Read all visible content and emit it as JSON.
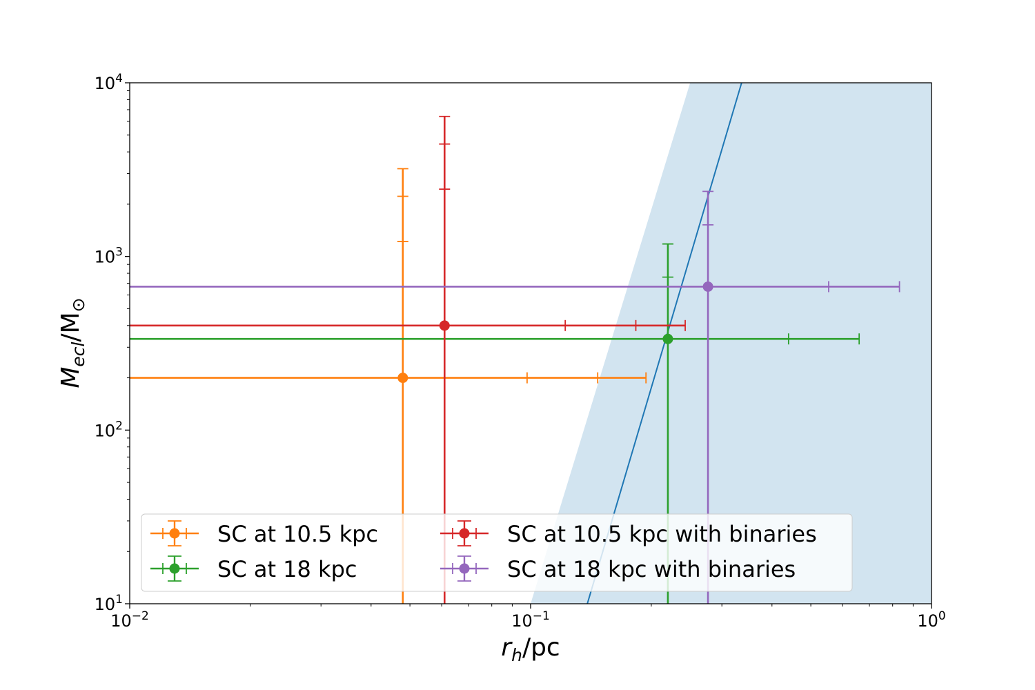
{
  "chart_data": {
    "type": "scatter",
    "xscale": "log",
    "yscale": "log",
    "xlim": [
      0.01,
      1
    ],
    "ylim": [
      10,
      10000
    ],
    "xlabel": {
      "italic": "r",
      "sub": "h",
      "rest": "/pc"
    },
    "ylabel": {
      "italic": "M",
      "sub": "ecl",
      "rest": "/M",
      "symbol": "⊙"
    },
    "x_ticks": [
      {
        "value": 0.01,
        "base": "10",
        "exp": "−2"
      },
      {
        "value": 0.1,
        "base": "10",
        "exp": "−1"
      },
      {
        "value": 1,
        "base": "10",
        "exp": "0"
      }
    ],
    "y_ticks": [
      {
        "value": 10,
        "base": "10",
        "exp": "1"
      },
      {
        "value": 100,
        "base": "10",
        "exp": "2"
      },
      {
        "value": 1000,
        "base": "10",
        "exp": "3"
      },
      {
        "value": 10000,
        "base": "10",
        "exp": "4"
      }
    ],
    "grid": false,
    "legend_placement": "lower-left",
    "legend_columns": 2,
    "series": [
      {
        "name": "SC at 10.5 kpc",
        "color": "#ff7f0e",
        "x": 0.048,
        "y": 200,
        "x_caps": [
          0.098,
          0.147
        ],
        "x_end": 0.194,
        "x_lower_end": 0.01,
        "y_caps": [
          1220,
          2220
        ],
        "y_end": 3200,
        "y_lower_end": 10
      },
      {
        "name": "SC at 18 kpc",
        "color": "#2ca02c",
        "x": 0.22,
        "y": 335,
        "x_caps": [
          0.44
        ],
        "x_end": 0.66,
        "x_lower_end": 0.01,
        "y_caps": [
          760
        ],
        "y_end": 1180,
        "y_lower_end": 10
      },
      {
        "name": "SC at 10.5 kpc with binaries",
        "color": "#d62728",
        "x": 0.061,
        "y": 400,
        "x_caps": [
          0.122,
          0.183
        ],
        "x_end": 0.243,
        "x_lower_end": 0.01,
        "y_caps": [
          2440,
          4440
        ],
        "y_end": 6400,
        "y_lower_end": 10
      },
      {
        "name": "SC at 18 kpc with binaries",
        "color": "#9467bd",
        "x": 0.277,
        "y": 670,
        "x_caps": [
          0.554
        ],
        "x_end": 0.832,
        "x_lower_end": 0.01,
        "y_caps": [
          1520
        ],
        "y_end": 2370,
        "y_lower_end": 10
      }
    ],
    "line": {
      "color": "#1f77b4",
      "points": [
        [
          0.1385,
          10
        ],
        [
          0.336,
          10000
        ]
      ]
    },
    "shaded_region": {
      "color": "#1f77b4",
      "opacity": 0.2,
      "boundary": [
        [
          0.1,
          10
        ],
        [
          0.25,
          10000
        ]
      ],
      "fill_to": "right"
    }
  }
}
